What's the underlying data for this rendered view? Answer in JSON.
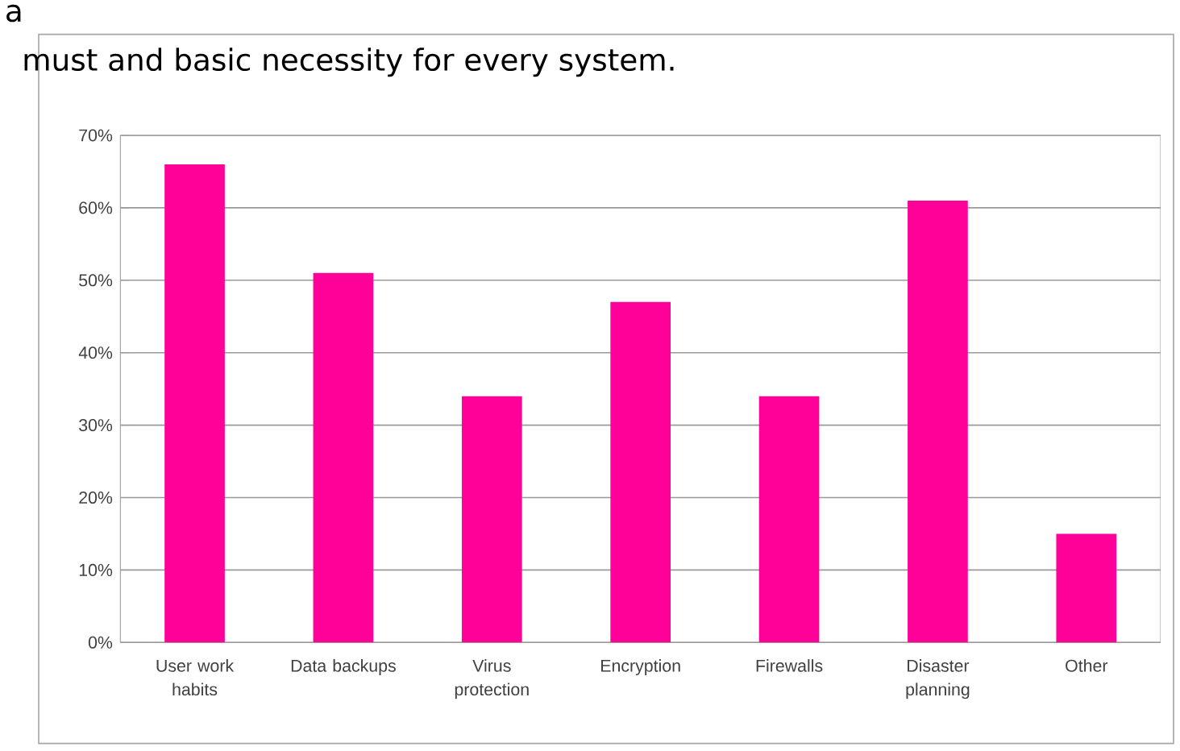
{
  "chart_data": {
    "type": "bar",
    "title": "a",
    "subtitle": "must and basic necessity for every system.",
    "categories": [
      "User work habits",
      "Data backups",
      "Virus protection",
      "Encryption",
      "Firewalls",
      "Disaster planning",
      "Other"
    ],
    "values": [
      66,
      51,
      34,
      47,
      34,
      61,
      15
    ],
    "color": "#ff0099",
    "ylim": [
      0,
      70
    ],
    "yticks": [
      {
        "value": 0,
        "label": "0%"
      },
      {
        "value": 10,
        "label": "10%"
      },
      {
        "value": 20,
        "label": "20%"
      },
      {
        "value": 30,
        "label": "30%"
      },
      {
        "value": 40,
        "label": "40%"
      },
      {
        "value": 50,
        "label": "50%"
      },
      {
        "value": 60,
        "label": "60%"
      },
      {
        "value": 70,
        "label": "70%"
      }
    ],
    "grid": "y"
  }
}
